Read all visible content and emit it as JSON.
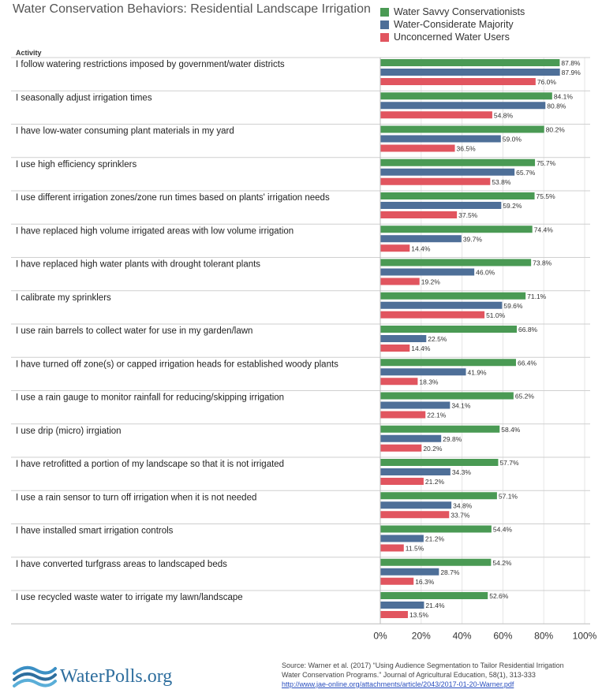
{
  "title": "Water Conservation Behaviors: Residential Landscape Irrigation",
  "column_header": "Activity",
  "colors": {
    "green": "#4a9a54",
    "blue": "#4e6f98",
    "red": "#e1555f"
  },
  "legend": [
    {
      "label": "Water Savvy Conservationists",
      "color": "#4a9a54"
    },
    {
      "label": "Water-Considerate Majority",
      "color": "#4e6f98"
    },
    {
      "label": "Unconcerned Water Users",
      "color": "#e1555f"
    }
  ],
  "chart_data": {
    "type": "bar",
    "orientation": "horizontal",
    "title": "Water Conservation Behaviors: Residential Landscape Irrigation",
    "ylabel": "Activity",
    "categories": [
      "I follow watering restrictions imposed by government/water districts",
      "I seasonally adjust irrigation times",
      "I have low-water consuming plant materials in my yard",
      "I use high efficiency sprinklers",
      "I use different irrigation zones/zone run times based on plants' irrigation needs",
      "I have replaced high volume irrigated areas with low volume irrigation",
      "I have replaced high water plants with drought tolerant plants",
      "I calibrate my sprinklers",
      "I use rain barrels to collect water for use in my garden/lawn",
      "I have turned off zone(s) or capped irrigation heads for established woody plants",
      "I use a rain gauge to monitor rainfall for reducing/skipping irrigation",
      "I use drip (micro) irrgiation",
      "I have retrofitted a portion of my landscape so that it is not irrigated",
      "I use a rain sensor to turn off irrigation when it is not needed",
      "I have installed smart irrigation controls",
      "I have converted turfgrass areas to landscaped beds",
      "I use recycled waste water to irrigate my lawn/landscape"
    ],
    "series": [
      {
        "name": "Water Savvy Conservationists",
        "color": "#4a9a54",
        "values": [
          87.8,
          84.1,
          80.2,
          75.7,
          75.5,
          74.4,
          73.8,
          71.1,
          66.8,
          66.4,
          65.2,
          58.4,
          57.7,
          57.1,
          54.4,
          54.2,
          52.6
        ],
        "labels": [
          "87.8%",
          "84.1%",
          "80.2%",
          "75.7%",
          "75.5%",
          "74.4%",
          "73.8%",
          "71.1%",
          "66.8%",
          "66.4%",
          "65.2%",
          "58.4%",
          "57.7%",
          "57.1%",
          "54.4%",
          "54.2%",
          "52.6%"
        ]
      },
      {
        "name": "Water-Considerate Majority",
        "color": "#4e6f98",
        "values": [
          87.9,
          80.8,
          59.0,
          65.7,
          59.2,
          39.7,
          46.0,
          59.6,
          22.5,
          41.9,
          34.1,
          29.8,
          34.3,
          34.8,
          21.2,
          28.7,
          21.4
        ],
        "labels": [
          "87.9%",
          "80.8%",
          "59.0%",
          "65.7%",
          "59.2%",
          "39.7%",
          "46.0%",
          "59.6%",
          "22.5%",
          "41.9%",
          "34.1%",
          "29.8%",
          "34.3%",
          "34.8%",
          "21.2%",
          "28.7%",
          "21.4%"
        ]
      },
      {
        "name": "Unconcerned Water Users",
        "color": "#e1555f",
        "values": [
          76.0,
          54.8,
          36.5,
          53.8,
          37.5,
          14.4,
          19.2,
          51.0,
          14.4,
          18.3,
          22.1,
          20.2,
          21.2,
          33.7,
          11.5,
          16.3,
          13.5
        ],
        "labels": [
          "76.0%",
          "54.8%",
          "36.5%",
          "53.8%",
          "37.5%",
          "14.4%",
          "19.2%",
          "51.0%",
          "14.4%",
          "18.3%",
          "22.1%",
          "20.2%",
          "21.2%",
          "33.7%",
          "11.5%",
          "16.3%",
          "13.5%"
        ]
      }
    ],
    "xlim": [
      0,
      100
    ],
    "xticks": [
      0,
      20,
      40,
      60,
      80,
      100
    ],
    "xtick_labels": [
      "0%",
      "20%",
      "40%",
      "60%",
      "80%",
      "100%"
    ],
    "grid": true,
    "legend_position": "top-right"
  },
  "footer": {
    "logo_text": "WaterPolls.org",
    "source_lines": [
      "Source: Warner et al. (2017) “Using Audience Segmentation to Tailor Residential Irrigation",
      "Water Conservation Programs.” Journal of Agricultural Education, 58(1), 313-333"
    ],
    "source_link": "http://www.jae-online.org/attachments/article/2043/2017-01-20-Warner.pdf"
  }
}
